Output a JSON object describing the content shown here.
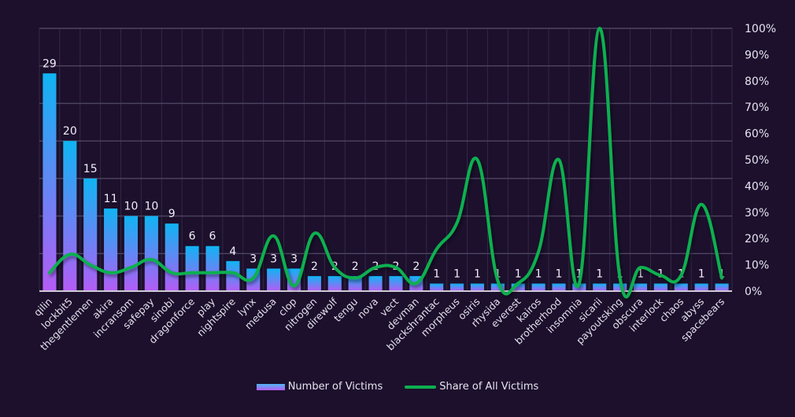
{
  "chart_data": {
    "type": "bar",
    "title": "",
    "xlabel": "",
    "ylabel": "",
    "categories": [
      "qilin",
      "lockbit5",
      "thegentlemen",
      "akira",
      "incransom",
      "safepay",
      "sinobi",
      "dragonforce",
      "play",
      "nightspire",
      "lynx",
      "medusa",
      "clop",
      "nitrogen",
      "direwolf",
      "tengu",
      "nova",
      "vect",
      "devman",
      "blackshrantac",
      "morpheus",
      "osiris",
      "rhysida",
      "everest",
      "kairos",
      "brotherhood",
      "insomnia",
      "sicarii",
      "payoutsking",
      "obscura",
      "interlock",
      "chaos",
      "abyss",
      "spacebears"
    ],
    "series": [
      {
        "name": "Number of Victims",
        "type": "bar",
        "axis": "left",
        "values": [
          29,
          20,
          15,
          11,
          10,
          10,
          9,
          6,
          6,
          4,
          3,
          3,
          3,
          2,
          2,
          2,
          2,
          2,
          2,
          1,
          1,
          1,
          1,
          1,
          1,
          1,
          1,
          1,
          1,
          1,
          1,
          1,
          1,
          1
        ],
        "colors": [
          "#0fb4f3",
          "#b45cf5"
        ],
        "data_labels": true
      },
      {
        "name": "Share of All Victims",
        "type": "line",
        "axis": "right",
        "unit": "%",
        "values": [
          7,
          14,
          10,
          7,
          9,
          12,
          7,
          7,
          7,
          7,
          5,
          21,
          2,
          22,
          9,
          5,
          9,
          9,
          3,
          16,
          26,
          50,
          4,
          3,
          15,
          50,
          3,
          100,
          5,
          9,
          6,
          6,
          33,
          5
        ],
        "color": "#0eb04f"
      }
    ],
    "y_left_range": [
      0,
      35
    ],
    "y_left_visible": false,
    "y_right_range": [
      0,
      100
    ],
    "y_right_ticks": [
      "0%",
      "10%",
      "20%",
      "30%",
      "40%",
      "50%",
      "60%",
      "70%",
      "80%",
      "90%",
      "100%"
    ],
    "grid": true,
    "legend": {
      "position": "bottom",
      "entries": [
        "Number of Victims",
        "Share of All Victims"
      ]
    }
  }
}
